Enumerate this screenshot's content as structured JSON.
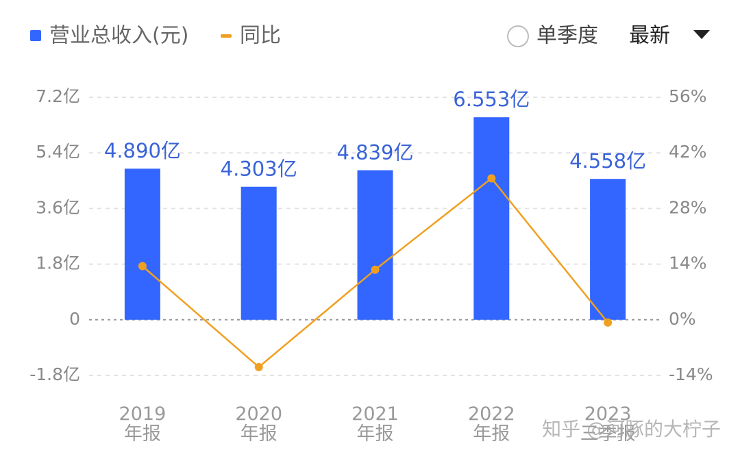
{
  "chart_data": {
    "type": "bar",
    "categories": [
      "2019\n年报",
      "2020\n年报",
      "2021\n年报",
      "2022\n年报",
      "2023\n三季报"
    ],
    "series": [
      {
        "name": "营业总收入(元)",
        "type": "bar",
        "color": "#3366ff",
        "values": [
          4.89,
          4.303,
          4.839,
          6.553,
          4.558
        ],
        "value_labels": [
          "4.890亿",
          "4.303亿",
          "4.839亿",
          "6.553亿",
          "4.558亿"
        ]
      },
      {
        "name": "同比",
        "type": "line",
        "axis": "y2",
        "color": "#f0a020",
        "values": [
          13.5,
          -11.9,
          12.6,
          35.6,
          -0.7
        ]
      }
    ],
    "ylim": [
      -1.8,
      7.2
    ],
    "yticks": [
      {
        "value": -1.8,
        "label": "-1.8亿"
      },
      0,
      {
        "value": 1.8,
        "label": "1.8亿"
      },
      {
        "value": 3.6,
        "label": "3.6亿"
      },
      {
        "value": 5.4,
        "label": "5.4亿"
      },
      {
        "value": 7.2,
        "label": "7.2亿"
      }
    ],
    "y2lim": [
      -14,
      56
    ],
    "y2ticks": [
      {
        "value": -14,
        "label": "-14%"
      },
      {
        "value": 0,
        "label": "0%"
      },
      {
        "value": 14,
        "label": "14%"
      },
      {
        "value": 28,
        "label": "28%"
      },
      {
        "value": 42,
        "label": "42%"
      },
      {
        "value": 56,
        "label": "56%"
      }
    ],
    "grid": true
  },
  "controls": {
    "period_toggle": "单季度",
    "sort": "最新"
  },
  "watermark": "知乎 @河豚的大柠子"
}
